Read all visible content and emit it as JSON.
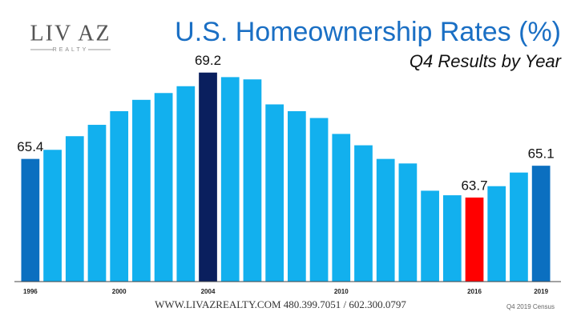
{
  "chart_data": {
    "type": "bar",
    "title": "U.S. Homeownership Rates (%)",
    "subtitle": "Q4 Results by Year",
    "logo": "LIV AZ",
    "logo_sub": "REALTY",
    "footer": "WWW.LIVAZREALTY.COM   480.399.7051 / 602.300.0797",
    "source": "Q4 2019 Census",
    "categories": [
      "1996",
      null,
      null,
      null,
      "2000",
      null,
      null,
      null,
      "2004",
      null,
      null,
      null,
      null,
      null,
      "2010",
      null,
      null,
      null,
      null,
      null,
      "2016",
      null,
      null,
      "2019"
    ],
    "values": [
      65.4,
      65.8,
      66.4,
      66.9,
      67.5,
      68.0,
      68.3,
      68.6,
      69.2,
      69.0,
      68.9,
      67.8,
      67.5,
      67.2,
      66.5,
      66.0,
      65.4,
      65.2,
      64.0,
      63.8,
      63.7,
      64.2,
      64.8,
      65.1
    ],
    "value_labels": [
      "65.4",
      null,
      null,
      null,
      null,
      null,
      null,
      null,
      "69.2",
      null,
      null,
      null,
      null,
      null,
      null,
      null,
      null,
      null,
      null,
      null,
      "63.7",
      null,
      null,
      "65.1"
    ],
    "colors": [
      "#0b6fc0",
      "#12b0ee",
      "#12b0ee",
      "#12b0ee",
      "#12b0ee",
      "#12b0ee",
      "#12b0ee",
      "#12b0ee",
      "#0a1f5e",
      "#12b0ee",
      "#12b0ee",
      "#12b0ee",
      "#12b0ee",
      "#12b0ee",
      "#12b0ee",
      "#12b0ee",
      "#12b0ee",
      "#12b0ee",
      "#12b0ee",
      "#12b0ee",
      "#ff0000",
      "#12b0ee",
      "#12b0ee",
      "#0b6fc0"
    ],
    "ylim": [
      60,
      70
    ]
  }
}
